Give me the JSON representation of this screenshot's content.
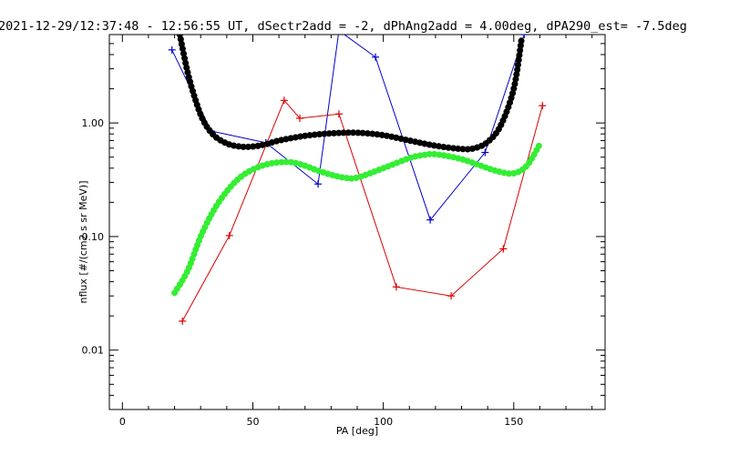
{
  "chart_data": {
    "type": "scatter",
    "title": "2021-12-29/12:37:48 - 12:56:55 UT, dSectr2add = -2, dPhAng2add = 4.00deg, dPA290_est=  -7.5deg",
    "xlabel": "PA [deg]",
    "ylabel": "nflux [#/(cm2 s sr MeV)]",
    "xlim": [
      -5,
      185
    ],
    "ylim": [
      0.003,
      6
    ],
    "yscale": "log",
    "grid": false,
    "x_ticks": [
      0,
      50,
      100,
      150
    ],
    "x_tick_labels": [
      "0",
      "50",
      "100",
      "150"
    ],
    "y_ticks": [
      0.01,
      0.1,
      1.0
    ],
    "y_tick_labels": [
      "0.01",
      "0.10",
      "1.00"
    ],
    "series": [
      {
        "color": "#0000cc",
        "style": "line-plus",
        "x": [
          19,
          34,
          55,
          75,
          83,
          97,
          118,
          139,
          154
        ],
        "y": [
          4.4,
          0.85,
          0.67,
          0.29,
          6.5,
          3.8,
          0.14,
          0.55,
          6.0
        ]
      },
      {
        "color": "#dd0000",
        "style": "line-plus",
        "x": [
          23,
          41,
          62,
          68,
          83,
          105,
          126,
          146,
          161
        ],
        "y": [
          0.018,
          0.102,
          1.58,
          1.1,
          1.2,
          0.036,
          0.03,
          0.078,
          1.42
        ]
      },
      {
        "color": "#000000",
        "style": "thick-dots",
        "x": [
          22,
          25,
          28,
          31,
          35,
          40,
          45,
          50,
          55,
          60,
          70,
          80,
          90,
          100,
          110,
          120,
          130,
          135,
          140,
          145,
          150,
          153
        ],
        "y": [
          6.0,
          2.8,
          1.6,
          1.05,
          0.78,
          0.66,
          0.62,
          0.62,
          0.65,
          0.7,
          0.77,
          0.81,
          0.82,
          0.78,
          0.7,
          0.63,
          0.59,
          0.6,
          0.68,
          0.95,
          2.0,
          5.5
        ]
      },
      {
        "color": "#33ee33",
        "style": "thick-dots",
        "x": [
          20,
          25,
          30,
          35,
          40,
          45,
          50,
          55,
          60,
          65,
          70,
          75,
          80,
          85,
          90,
          100,
          110,
          115,
          120,
          130,
          140,
          145,
          150,
          155,
          160
        ],
        "y": [
          0.032,
          0.05,
          0.1,
          0.17,
          0.25,
          0.33,
          0.39,
          0.43,
          0.45,
          0.45,
          0.42,
          0.38,
          0.35,
          0.33,
          0.33,
          0.4,
          0.49,
          0.52,
          0.53,
          0.48,
          0.4,
          0.37,
          0.36,
          0.42,
          0.65
        ]
      }
    ]
  }
}
